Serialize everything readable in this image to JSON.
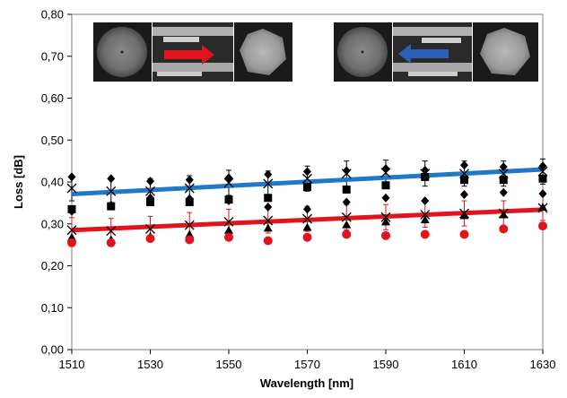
{
  "chart_data": {
    "type": "scatter",
    "xlabel": "Wavelength [nm]",
    "ylabel": "Loss [dB]",
    "xlim": [
      1510,
      1630
    ],
    "ylim": [
      0,
      0.8
    ],
    "xticks": [
      1510,
      1530,
      1550,
      1570,
      1590,
      1610,
      1630
    ],
    "xtick_labels": [
      "1510",
      "1530",
      "1550",
      "1570",
      "1590",
      "1610",
      "1630"
    ],
    "yticks": [
      0,
      0.1,
      0.2,
      0.3,
      0.4,
      0.5,
      0.6,
      0.7,
      0.8
    ],
    "ytick_labels": [
      "0,00",
      "0,10",
      "0,20",
      "0,30",
      "0,40",
      "0,50",
      "0,60",
      "0,70",
      "0,80"
    ],
    "grid": false,
    "legend": "none",
    "insets": [
      {
        "direction": "right",
        "arrow_color": "#e0141e"
      },
      {
        "direction": "left",
        "arrow_color": "#2b5fb5"
      }
    ],
    "series": [
      {
        "marker": "diamond",
        "color": "#000000",
        "x": [
          1510,
          1520,
          1530,
          1540,
          1550,
          1560,
          1570,
          1580,
          1590,
          1600,
          1610,
          1620,
          1630
        ],
        "values": [
          0.412,
          0.408,
          0.402,
          0.405,
          0.41,
          0.418,
          0.425,
          0.427,
          0.432,
          0.428,
          0.44,
          0.436,
          0.438
        ]
      },
      {
        "marker": "x",
        "color": "#000000",
        "x": [
          1510,
          1520,
          1530,
          1540,
          1550,
          1560,
          1570,
          1580,
          1590,
          1600,
          1610,
          1620,
          1630
        ],
        "values": [
          0.385,
          0.378,
          0.378,
          0.385,
          0.398,
          0.396,
          0.408,
          0.42,
          0.422,
          0.42,
          0.42,
          0.42,
          0.425
        ]
      },
      {
        "marker": "square",
        "color": "#000000",
        "x": [
          1510,
          1520,
          1530,
          1540,
          1550,
          1560,
          1570,
          1580,
          1590,
          1600,
          1610,
          1620,
          1630
        ],
        "values": [
          0.335,
          0.342,
          0.352,
          0.352,
          0.358,
          0.362,
          0.388,
          0.382,
          0.392,
          0.412,
          0.405,
          0.405,
          0.408
        ]
      },
      {
        "marker": "diamond",
        "color": "#000000",
        "x": [
          1510,
          1520,
          1530,
          1540,
          1550,
          1560,
          1570,
          1580,
          1590,
          1600,
          1610,
          1620,
          1630
        ],
        "values": [
          0.33,
          0.345,
          0.362,
          0.36,
          0.355,
          0.34,
          0.335,
          0.352,
          0.362,
          0.355,
          0.37,
          0.375,
          0.372
        ]
      },
      {
        "marker": "x",
        "color": "#000000",
        "x": [
          1510,
          1520,
          1530,
          1540,
          1550,
          1560,
          1570,
          1580,
          1590,
          1600,
          1610,
          1620,
          1630
        ],
        "values": [
          0.285,
          0.283,
          0.288,
          0.297,
          0.305,
          0.308,
          0.312,
          0.316,
          0.316,
          0.322,
          0.325,
          0.325,
          0.338
        ]
      },
      {
        "marker": "triangle",
        "color": "#000000",
        "x": [
          1510,
          1520,
          1530,
          1540,
          1550,
          1560,
          1570,
          1580,
          1590,
          1600,
          1610,
          1620,
          1630
        ],
        "values": [
          0.268,
          0.262,
          0.27,
          0.275,
          0.285,
          0.29,
          0.292,
          0.298,
          0.305,
          0.31,
          0.32,
          0.322,
          0.34
        ]
      },
      {
        "marker": "circle",
        "color": "#e0141e",
        "x": [
          1510,
          1520,
          1530,
          1540,
          1550,
          1560,
          1570,
          1580,
          1590,
          1600,
          1610,
          1620,
          1630
        ],
        "values": [
          0.255,
          0.255,
          0.265,
          0.262,
          0.268,
          0.26,
          0.268,
          0.275,
          0.272,
          0.275,
          0.275,
          0.288,
          0.295
        ]
      }
    ],
    "error_bars": [
      {
        "color": "#000000",
        "x": [
          1510,
          1520,
          1530,
          1540,
          1550,
          1560,
          1570,
          1580,
          1590,
          1600,
          1610,
          1620,
          1630
        ],
        "values": [
          0.385,
          0.378,
          0.378,
          0.385,
          0.398,
          0.396,
          0.408,
          0.42,
          0.422,
          0.42,
          0.42,
          0.42,
          0.425
        ],
        "err": 0.03
      },
      {
        "color": "#e0141e",
        "x": [
          1510,
          1520,
          1530,
          1540,
          1550,
          1560,
          1570,
          1580,
          1590,
          1600,
          1610,
          1620,
          1630
        ],
        "values": [
          0.285,
          0.283,
          0.288,
          0.297,
          0.305,
          0.308,
          0.312,
          0.316,
          0.316,
          0.322,
          0.325,
          0.325,
          0.338
        ],
        "err": 0.03
      }
    ],
    "trendlines": [
      {
        "color": "#1f78c8",
        "x": [
          1510,
          1630
        ],
        "values": [
          0.371,
          0.43
        ]
      },
      {
        "color": "#e0141e",
        "x": [
          1510,
          1630
        ],
        "values": [
          0.285,
          0.334
        ]
      }
    ]
  }
}
